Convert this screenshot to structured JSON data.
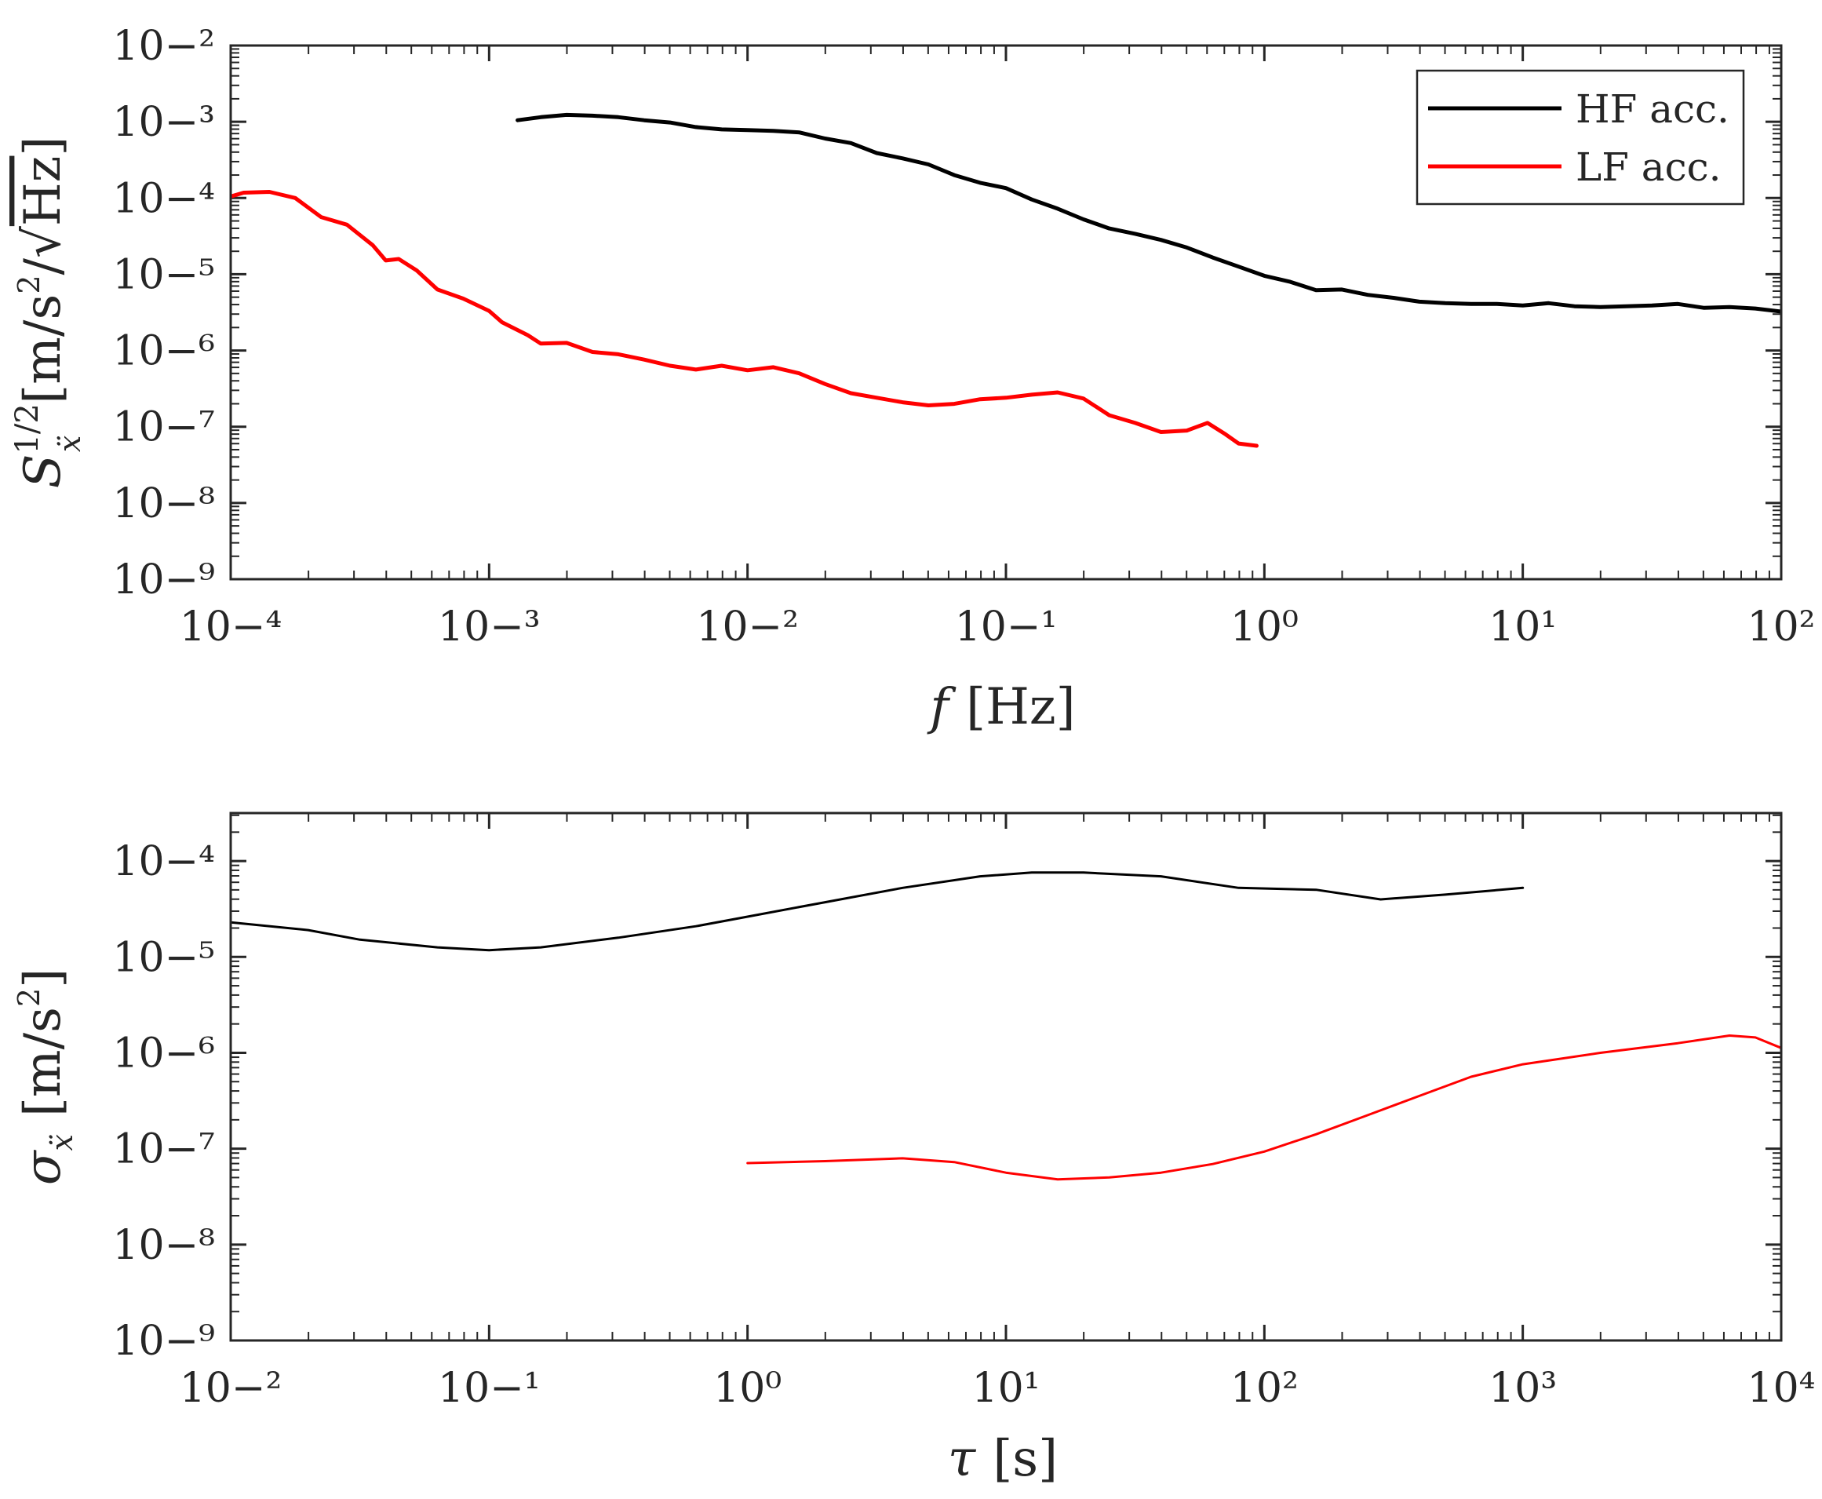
{
  "chart_data": [
    {
      "type": "line",
      "id": "psd",
      "xscale": "log",
      "yscale": "log",
      "xlim_exp": [
        -4,
        2
      ],
      "ylim_exp": [
        -9,
        -2
      ],
      "xlabel_italic": "f",
      "xlabel_unit": "[Hz]",
      "ylabel_symbol": "S",
      "ylabel_sub": "ẍ",
      "ylabel_sup": "1/2",
      "ylabel_unit_open": "[m/s",
      "ylabel_unit_sup": "2",
      "ylabel_unit_mid": "/",
      "ylabel_sqrt": "√",
      "ylabel_unit_hz": "Hz",
      "ylabel_unit_close": "]",
      "legend_position": "top-right",
      "series": [
        {
          "name": "HF acc.",
          "color": "#000000",
          "points": [
            [
              -2.89,
              -2.98
            ],
            [
              -2.8,
              -2.94
            ],
            [
              -2.7,
              -2.91
            ],
            [
              -2.6,
              -2.92
            ],
            [
              -2.5,
              -2.94
            ],
            [
              -2.4,
              -2.98
            ],
            [
              -2.3,
              -3.01
            ],
            [
              -2.2,
              -3.07
            ],
            [
              -2.1,
              -3.1
            ],
            [
              -2.0,
              -3.11
            ],
            [
              -1.9,
              -3.12
            ],
            [
              -1.8,
              -3.14
            ],
            [
              -1.7,
              -3.22
            ],
            [
              -1.6,
              -3.28
            ],
            [
              -1.5,
              -3.41
            ],
            [
              -1.4,
              -3.48
            ],
            [
              -1.3,
              -3.56
            ],
            [
              -1.2,
              -3.7
            ],
            [
              -1.1,
              -3.8
            ],
            [
              -1.0,
              -3.87
            ],
            [
              -0.9,
              -4.02
            ],
            [
              -0.8,
              -4.14
            ],
            [
              -0.7,
              -4.28
            ],
            [
              -0.6,
              -4.4
            ],
            [
              -0.5,
              -4.47
            ],
            [
              -0.4,
              -4.55
            ],
            [
              -0.3,
              -4.65
            ],
            [
              -0.2,
              -4.78
            ],
            [
              -0.1,
              -4.9
            ],
            [
              0.0,
              -5.02
            ],
            [
              0.1,
              -5.1
            ],
            [
              0.2,
              -5.21
            ],
            [
              0.3,
              -5.2
            ],
            [
              0.4,
              -5.27
            ],
            [
              0.5,
              -5.31
            ],
            [
              0.6,
              -5.36
            ],
            [
              0.7,
              -5.38
            ],
            [
              0.8,
              -5.39
            ],
            [
              0.9,
              -5.39
            ],
            [
              1.0,
              -5.41
            ],
            [
              1.1,
              -5.38
            ],
            [
              1.2,
              -5.42
            ],
            [
              1.3,
              -5.43
            ],
            [
              1.4,
              -5.42
            ],
            [
              1.5,
              -5.41
            ],
            [
              1.6,
              -5.39
            ],
            [
              1.7,
              -5.44
            ],
            [
              1.8,
              -5.43
            ],
            [
              1.9,
              -5.45
            ],
            [
              2.0,
              -5.49
            ]
          ]
        },
        {
          "name": "LF acc.",
          "color": "#ff0000",
          "points": [
            [
              -4.04,
              -4.02
            ],
            [
              -3.95,
              -3.93
            ],
            [
              -3.85,
              -3.92
            ],
            [
              -3.75,
              -4.0
            ],
            [
              -3.65,
              -4.25
            ],
            [
              -3.55,
              -4.35
            ],
            [
              -3.45,
              -4.62
            ],
            [
              -3.4,
              -4.82
            ],
            [
              -3.35,
              -4.8
            ],
            [
              -3.28,
              -4.95
            ],
            [
              -3.2,
              -5.2
            ],
            [
              -3.1,
              -5.32
            ],
            [
              -3.0,
              -5.48
            ],
            [
              -2.95,
              -5.63
            ],
            [
              -2.85,
              -5.8
            ],
            [
              -2.8,
              -5.91
            ],
            [
              -2.7,
              -5.9
            ],
            [
              -2.6,
              -6.02
            ],
            [
              -2.5,
              -6.05
            ],
            [
              -2.4,
              -6.12
            ],
            [
              -2.3,
              -6.2
            ],
            [
              -2.2,
              -6.25
            ],
            [
              -2.1,
              -6.2
            ],
            [
              -2.0,
              -6.26
            ],
            [
              -1.9,
              -6.22
            ],
            [
              -1.8,
              -6.3
            ],
            [
              -1.7,
              -6.44
            ],
            [
              -1.6,
              -6.56
            ],
            [
              -1.5,
              -6.62
            ],
            [
              -1.4,
              -6.68
            ],
            [
              -1.3,
              -6.72
            ],
            [
              -1.2,
              -6.7
            ],
            [
              -1.1,
              -6.64
            ],
            [
              -1.0,
              -6.62
            ],
            [
              -0.9,
              -6.58
            ],
            [
              -0.8,
              -6.55
            ],
            [
              -0.7,
              -6.63
            ],
            [
              -0.6,
              -6.85
            ],
            [
              -0.5,
              -6.95
            ],
            [
              -0.4,
              -7.07
            ],
            [
              -0.3,
              -7.05
            ],
            [
              -0.22,
              -6.95
            ],
            [
              -0.15,
              -7.1
            ],
            [
              -0.1,
              -7.22
            ],
            [
              -0.03,
              -7.25
            ]
          ]
        }
      ]
    },
    {
      "type": "line",
      "id": "allan",
      "xscale": "log",
      "yscale": "log",
      "xlim_exp": [
        -2,
        4
      ],
      "ylim_exp": [
        -9,
        -3.5
      ],
      "xlabel_italic": "τ",
      "xlabel_unit": "[s]",
      "ylabel_symbol": "σ",
      "ylabel_sub": "ẍ",
      "ylabel_unit_open": "[m/s",
      "ylabel_unit_sup": "2",
      "ylabel_unit_close": "]",
      "series": [
        {
          "name": "HF acc.",
          "color": "#000000",
          "points": [
            [
              -2.0,
              -4.64
            ],
            [
              -1.7,
              -4.72
            ],
            [
              -1.5,
              -4.82
            ],
            [
              -1.2,
              -4.9
            ],
            [
              -1.0,
              -4.93
            ],
            [
              -0.8,
              -4.9
            ],
            [
              -0.5,
              -4.8
            ],
            [
              -0.2,
              -4.68
            ],
            [
              0.0,
              -4.58
            ],
            [
              0.3,
              -4.43
            ],
            [
              0.6,
              -4.28
            ],
            [
              0.9,
              -4.16
            ],
            [
              1.1,
              -4.12
            ],
            [
              1.3,
              -4.12
            ],
            [
              1.6,
              -4.16
            ],
            [
              1.9,
              -4.28
            ],
            [
              2.2,
              -4.3
            ],
            [
              2.45,
              -4.4
            ],
            [
              2.7,
              -4.35
            ],
            [
              3.0,
              -4.28
            ]
          ]
        },
        {
          "name": "LF acc.",
          "color": "#ff0000",
          "points": [
            [
              0.0,
              -7.15
            ],
            [
              0.3,
              -7.13
            ],
            [
              0.6,
              -7.1
            ],
            [
              0.8,
              -7.14
            ],
            [
              1.0,
              -7.25
            ],
            [
              1.2,
              -7.32
            ],
            [
              1.4,
              -7.3
            ],
            [
              1.6,
              -7.25
            ],
            [
              1.8,
              -7.16
            ],
            [
              2.0,
              -7.03
            ],
            [
              2.2,
              -6.85
            ],
            [
              2.4,
              -6.65
            ],
            [
              2.6,
              -6.45
            ],
            [
              2.8,
              -6.25
            ],
            [
              3.0,
              -6.12
            ],
            [
              3.3,
              -6.0
            ],
            [
              3.6,
              -5.9
            ],
            [
              3.8,
              -5.82
            ],
            [
              3.9,
              -5.84
            ],
            [
              4.0,
              -5.95
            ]
          ]
        }
      ]
    }
  ]
}
